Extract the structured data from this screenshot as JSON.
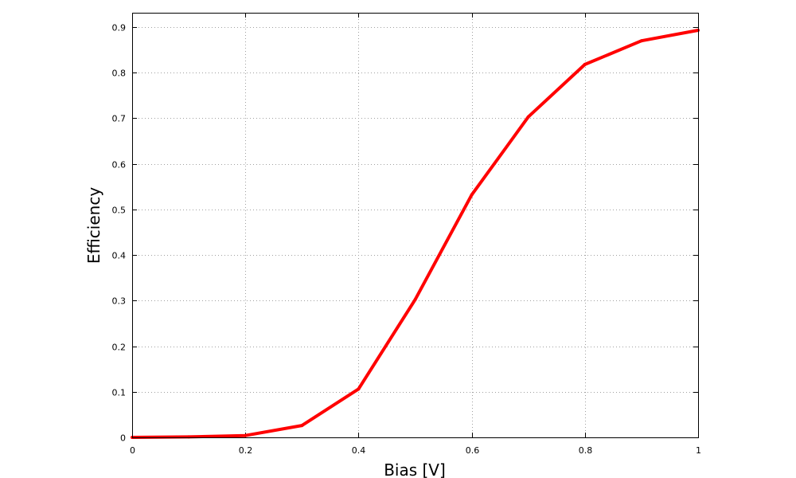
{
  "chart_data": {
    "type": "line",
    "title": "",
    "xlabel": "Bias [V]",
    "ylabel": "Efficiency",
    "xlim": [
      0,
      1
    ],
    "ylim": [
      0,
      0.9
    ],
    "x_ticks": [
      "0",
      "0.2",
      "0.4",
      "0.6",
      "0.8",
      "1"
    ],
    "y_ticks": [
      "0",
      "0.1",
      "0.2",
      "0.3",
      "0.4",
      "0.5",
      "0.6",
      "0.7",
      "0.8",
      "0.9"
    ],
    "grid": true,
    "series": [
      {
        "color": "#ff0000",
        "x": [
          0,
          0.1,
          0.2,
          0.3,
          0.4,
          0.5,
          0.6,
          0.7,
          0.8,
          0.9,
          1.0
        ],
        "y": [
          0.0,
          0.001,
          0.004,
          0.026,
          0.106,
          0.302,
          0.532,
          0.703,
          0.818,
          0.87,
          0.893
        ]
      }
    ]
  }
}
